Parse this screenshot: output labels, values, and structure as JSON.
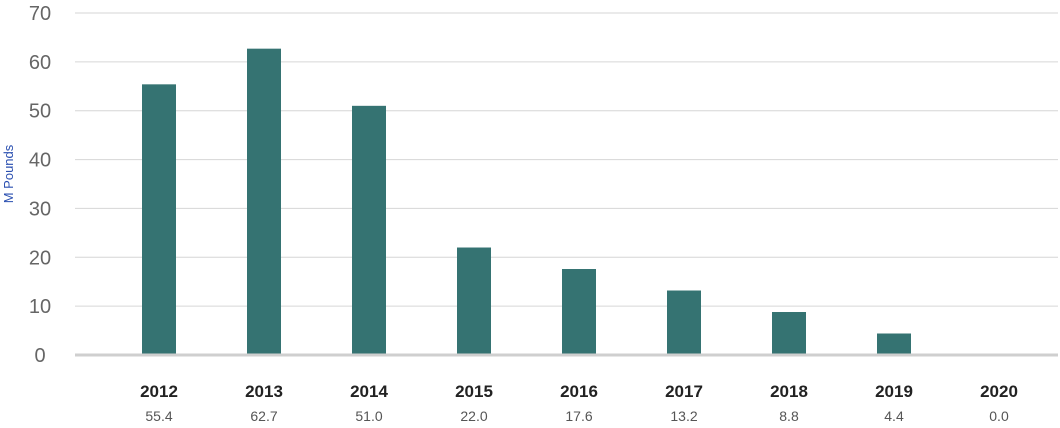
{
  "chart_data": {
    "type": "bar",
    "categories": [
      "2012",
      "2013",
      "2014",
      "2015",
      "2016",
      "2017",
      "2018",
      "2019",
      "2020"
    ],
    "values": [
      55.4,
      62.7,
      51.0,
      22.0,
      17.6,
      13.2,
      8.8,
      4.4,
      0.0
    ],
    "value_labels": [
      "55.4",
      "62.7",
      "51.0",
      "22.0",
      "17.6",
      "13.2",
      "8.8",
      "4.4",
      "0.0"
    ],
    "title": "",
    "xlabel": "",
    "ylabel": "M Pounds",
    "ylim": [
      0,
      70
    ],
    "yticks": [
      "0",
      "10",
      "20",
      "30",
      "40",
      "50",
      "60",
      "70"
    ],
    "grid": true,
    "bar_color": "#357372"
  }
}
